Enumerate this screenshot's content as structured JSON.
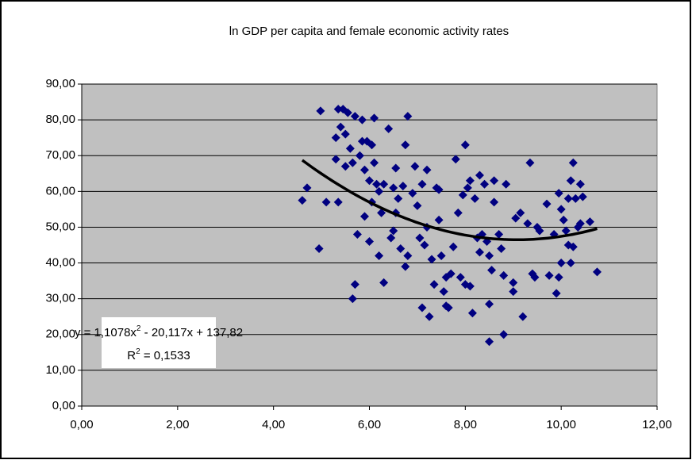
{
  "chart_data": {
    "type": "scatter",
    "title": "ln GDP per capita and female economic activity rates",
    "color": "#000080",
    "x": [
      4.6,
      4.7,
      4.95,
      4.98,
      5.1,
      5.3,
      5.3,
      5.35,
      5.4,
      5.35,
      5.45,
      5.5,
      5.5,
      5.55,
      5.6,
      5.65,
      5.7,
      5.65,
      5.7,
      5.75,
      5.8,
      5.85,
      5.85,
      5.9,
      5.9,
      5.95,
      6.0,
      6.0,
      6.05,
      6.05,
      6.1,
      6.1,
      6.15,
      6.2,
      6.2,
      6.25,
      6.3,
      6.3,
      6.4,
      6.45,
      6.5,
      6.5,
      6.55,
      6.55,
      6.6,
      6.65,
      6.7,
      6.75,
      6.75,
      6.8,
      6.8,
      6.9,
      6.95,
      7.0,
      7.05,
      7.1,
      7.1,
      7.15,
      7.2,
      7.2,
      7.25,
      7.3,
      7.35,
      7.4,
      7.45,
      7.45,
      7.5,
      7.55,
      7.6,
      7.6,
      7.65,
      7.7,
      7.75,
      7.8,
      7.85,
      7.9,
      7.95,
      8.0,
      8.0,
      8.05,
      8.1,
      8.1,
      8.15,
      8.2,
      8.25,
      8.3,
      8.3,
      8.35,
      8.4,
      8.45,
      8.5,
      8.5,
      8.55,
      8.6,
      8.6,
      8.7,
      8.75,
      8.8,
      8.5,
      8.85,
      8.8,
      9.35,
      9.0,
      9.0,
      9.05,
      9.15,
      9.2,
      9.3,
      9.4,
      9.45,
      9.5,
      9.55,
      9.7,
      9.75,
      9.85,
      9.9,
      9.95,
      9.95,
      10.0,
      10.0,
      10.05,
      10.1,
      10.15,
      10.15,
      10.2,
      10.2,
      10.25,
      10.25,
      10.3,
      10.35,
      10.4,
      10.4,
      10.45,
      10.6,
      10.75
    ],
    "values": [
      57.5,
      61,
      44,
      82.5,
      57,
      69,
      75,
      83,
      78,
      57,
      83,
      67,
      76,
      82,
      72,
      68,
      81,
      30,
      34,
      48,
      70,
      80,
      74,
      66,
      53,
      74,
      63,
      46,
      57,
      73,
      80.5,
      68,
      62,
      60,
      42,
      54,
      34.5,
      62,
      77.5,
      47,
      49,
      61,
      66.5,
      54,
      58,
      44,
      61.5,
      39,
      73,
      81,
      42,
      59.5,
      67,
      56,
      47,
      62,
      27.5,
      45,
      50,
      66,
      25,
      41,
      34,
      61,
      60.5,
      52,
      42,
      32,
      36,
      28,
      27.5,
      37,
      44.5,
      69,
      54,
      36,
      59,
      73,
      34,
      61,
      63,
      33.5,
      26,
      58,
      47,
      64.5,
      43,
      48,
      62,
      46,
      28.5,
      42,
      38,
      57,
      63,
      48,
      44,
      36.5,
      18,
      62,
      20,
      68,
      32,
      34.5,
      52.5,
      54,
      25,
      51,
      37,
      36,
      50,
      49,
      56.5,
      36.5,
      48,
      31.5,
      59.5,
      36,
      40,
      55,
      52,
      49,
      58,
      45,
      63,
      40,
      68,
      44.5,
      58,
      50,
      62,
      51,
      58.5,
      51.5,
      37.5
    ],
    "xlim": [
      0,
      12
    ],
    "ylim": [
      0,
      90
    ],
    "xticks": [
      {
        "value": 0,
        "label": "0,00"
      },
      {
        "value": 2,
        "label": "2,00"
      },
      {
        "value": 4,
        "label": "4,00"
      },
      {
        "value": 6,
        "label": "6,00"
      },
      {
        "value": 8,
        "label": "8,00"
      },
      {
        "value": 10,
        "label": "10,00"
      },
      {
        "value": 12,
        "label": "12,00"
      }
    ],
    "yticks": [
      {
        "value": 0,
        "label": "0,00"
      },
      {
        "value": 10,
        "label": "10,00"
      },
      {
        "value": 20,
        "label": "20,00"
      },
      {
        "value": 30,
        "label": "30,00"
      },
      {
        "value": 40,
        "label": "40,00"
      },
      {
        "value": 50,
        "label": "50,00"
      },
      {
        "value": 60,
        "label": "60,00"
      },
      {
        "value": 70,
        "label": "70,00"
      },
      {
        "value": 80,
        "label": "80,00"
      },
      {
        "value": 90,
        "label": "90,00"
      }
    ],
    "grid": true,
    "trendline": {
      "coefficients": [
        1.1078,
        -20.117,
        137.82
      ],
      "equation": [
        "y = 1,1078x",
        "2",
        " - 20,117x + 137,82"
      ],
      "r_squared": [
        "R",
        "2",
        " = 0,1533"
      ]
    }
  }
}
